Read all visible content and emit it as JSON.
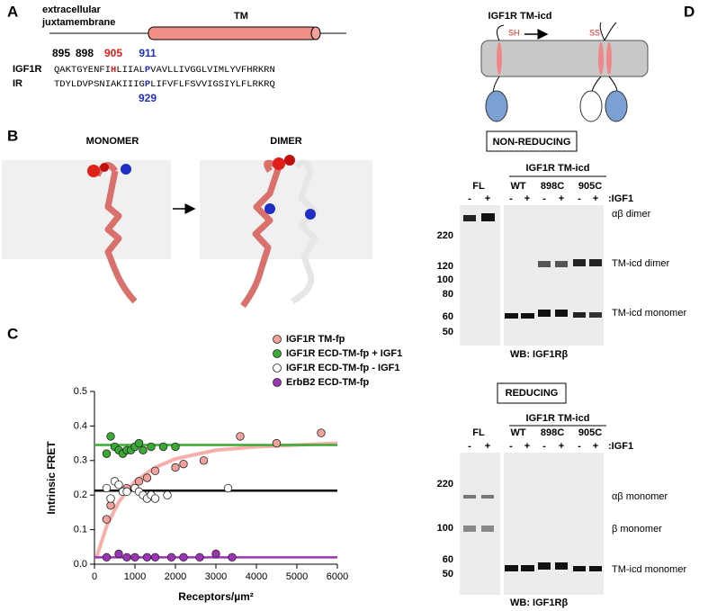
{
  "panel_labels": [
    "A",
    "B",
    "C",
    "D"
  ],
  "panel_a": {
    "region_label": [
      "extracellular",
      "juxtamembrane"
    ],
    "tm_label": "TM",
    "positions": [
      "895",
      "898",
      "905",
      "911",
      "929"
    ],
    "igf1r": {
      "name": "IGF1R",
      "sequence": [
        "QAKTGYENFI",
        "H",
        "LIIAL",
        "P",
        "VAVLLIVGGLVIMLYVFHRKRN"
      ]
    },
    "ir": {
      "name": "IR",
      "sequence": [
        "TDYLDVPSNIAKIIIG",
        "P",
        "LIFVFLFSVVIGSIYLFLRKRQ"
      ]
    }
  },
  "panel_b": {
    "monomer": "MONOMER",
    "dimer": "DIMER"
  },
  "chart_data": {
    "type": "scatter",
    "xlabel": "Receptors/µm²",
    "ylabel": "Intrinsic FRET",
    "xlim": [
      0,
      6000
    ],
    "ylim": [
      0,
      0.5
    ],
    "xticks": [
      0,
      1000,
      2000,
      3000,
      4000,
      5000,
      6000
    ],
    "yticks": [
      {
        "value": 0,
        "label": "0.0"
      },
      0.1,
      0.2,
      0.3,
      0.4,
      0.5
    ],
    "legend": "top",
    "series": [
      {
        "name": "IGF1R TM-fp",
        "color": "#f4a19b",
        "x": [
          300,
          400,
          700,
          800,
          1000,
          1100,
          1300,
          1500,
          2000,
          2200,
          2700,
          3600,
          4500,
          5600
        ],
        "values": [
          0.13,
          0.17,
          0.21,
          0.22,
          0.22,
          0.24,
          0.25,
          0.27,
          0.28,
          0.29,
          0.3,
          0.37,
          0.35,
          0.38
        ],
        "fit": {
          "color": "#f4a19b",
          "x": [
            50,
            300,
            600,
            1000,
            1500,
            2000,
            3000,
            4000,
            5000,
            6000
          ],
          "y": [
            0.02,
            0.11,
            0.18,
            0.24,
            0.28,
            0.305,
            0.33,
            0.34,
            0.345,
            0.35
          ]
        }
      },
      {
        "name": "IGF1R ECD-TM-fp  + IGF1",
        "color": "#3aaa35",
        "x": [
          300,
          400,
          500,
          600,
          700,
          800,
          900,
          1000,
          1100,
          1200,
          1400,
          1700,
          2000
        ],
        "values": [
          0.32,
          0.37,
          0.34,
          0.33,
          0.32,
          0.33,
          0.33,
          0.34,
          0.35,
          0.33,
          0.34,
          0.34,
          0.34
        ],
        "fit": {
          "color": "#3aaa35",
          "x": [
            0,
            6000
          ],
          "y": [
            0.345,
            0.345
          ]
        }
      },
      {
        "name": "IGF1R ECD-TM-fp   - IGF1",
        "color": "#ffffff",
        "x": [
          300,
          400,
          500,
          600,
          700,
          800,
          1000,
          1100,
          1200,
          1300,
          1400,
          1500,
          1800,
          3300
        ],
        "values": [
          0.22,
          0.19,
          0.24,
          0.23,
          0.21,
          0.21,
          0.22,
          0.21,
          0.2,
          0.19,
          0.2,
          0.19,
          0.2,
          0.22
        ],
        "fit": {
          "color": "#000000",
          "x": [
            0,
            6000
          ],
          "y": [
            0.213,
            0.213
          ]
        }
      },
      {
        "name": "ErbB2 ECD-TM-fp",
        "color": "#9b35b5",
        "x": [
          300,
          600,
          800,
          1000,
          1300,
          1500,
          1900,
          2200,
          2600,
          3000,
          3400
        ],
        "values": [
          0.02,
          0.03,
          0.02,
          0.02,
          0.02,
          0.02,
          0.02,
          0.02,
          0.02,
          0.03,
          0.02
        ],
        "fit": {
          "color": "#9b35b5",
          "x": [
            0,
            6000
          ],
          "y": [
            0.02,
            0.02
          ]
        }
      }
    ]
  },
  "panel_d": {
    "title": "IGF1R TM-icd",
    "sh": "SH",
    "ss": "SS",
    "non_reducing": {
      "heading": "NON-REDUCING",
      "group": "IGF1R TM-icd",
      "lanes": [
        "FL",
        "WT",
        "898C",
        "905C"
      ],
      "treatment": [
        ":IGF1",
        "-",
        "+"
      ],
      "mw": [
        "220",
        "120",
        "100",
        "80",
        "60",
        "50"
      ],
      "bands": [
        "αβ dimer",
        "TM-icd dimer",
        "TM-icd monomer"
      ],
      "wb": "WB:  IGF1Rβ"
    },
    "reducing": {
      "heading": "REDUCING",
      "group": "IGF1R TM-icd",
      "lanes": [
        "FL",
        "WT",
        "898C",
        "905C"
      ],
      "treatment": [
        ":IGF1",
        "-",
        "+"
      ],
      "mw": [
        "220",
        "100",
        "60",
        "50"
      ],
      "bands": [
        "αβ monomer",
        "β monomer",
        "TM-icd monomer"
      ],
      "wb": "WB:  IGF1Rβ"
    }
  }
}
